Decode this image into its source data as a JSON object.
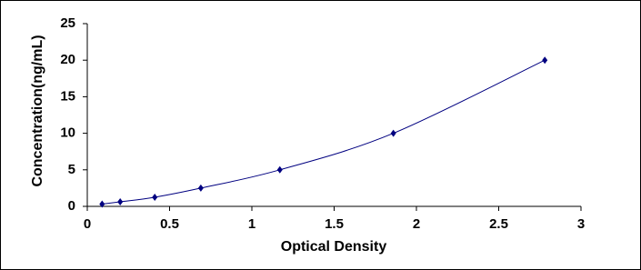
{
  "chart_data": {
    "type": "scatter",
    "x_label": "Optical Density",
    "y_label": "Concentration(ng/mL)",
    "x": [
      0.09,
      0.2,
      0.41,
      0.69,
      1.17,
      1.86,
      2.78
    ],
    "values": [
      0.31,
      0.625,
      1.25,
      2.5,
      5,
      10,
      20
    ],
    "color": "#000080",
    "connect": "smooth",
    "xlim": [
      0,
      3
    ],
    "xticks": [
      0,
      0.5,
      1,
      1.5,
      2,
      2.5,
      3
    ],
    "ylim": [
      0,
      25
    ],
    "yticks": [
      0,
      5,
      10,
      15,
      20,
      25
    ],
    "grid": false
  }
}
